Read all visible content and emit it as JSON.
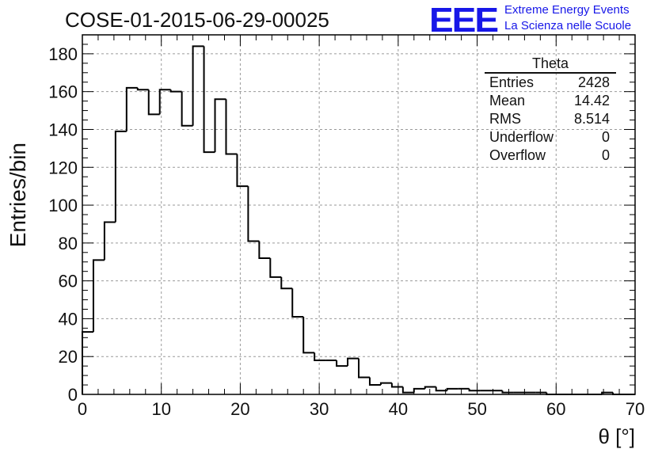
{
  "header": {
    "title": "COSE-01-2015-06-29-00025",
    "logo_text": "EEE",
    "logo_line1": "Extreme Energy Events",
    "logo_line2": "La Scienza nelle Scuole",
    "logo_color": "#1717e8"
  },
  "stats": {
    "name": "Theta",
    "rows": [
      {
        "label": "Entries",
        "value": "2428"
      },
      {
        "label": "Mean",
        "value": "14.42"
      },
      {
        "label": "RMS",
        "value": "8.514"
      },
      {
        "label": "Underflow",
        "value": "0"
      },
      {
        "label": "Overflow",
        "value": "0"
      }
    ]
  },
  "chart_data": {
    "type": "bar",
    "style": "step-histogram",
    "title": "COSE-01-2015-06-29-00025",
    "xlabel": "θ [°]",
    "ylabel": "Entries/bin",
    "xlim": [
      0,
      70
    ],
    "ylim": [
      0,
      190
    ],
    "xticks": [
      0,
      10,
      20,
      30,
      40,
      50,
      60,
      70
    ],
    "yticks": [
      0,
      20,
      40,
      60,
      80,
      100,
      120,
      140,
      160,
      180
    ],
    "grid": true,
    "bin_width": 1.4,
    "bin_edges_start": 0,
    "values": [
      33,
      71,
      91,
      139,
      162,
      161,
      148,
      161,
      160,
      142,
      184,
      128,
      156,
      127,
      110,
      81,
      72,
      62,
      56,
      41,
      22,
      18,
      18,
      15,
      19,
      9,
      5,
      6,
      4,
      1,
      3,
      4,
      2,
      3,
      3,
      2,
      2,
      2,
      1,
      1,
      1,
      1,
      0,
      0,
      0,
      0,
      0,
      1,
      0,
      0
    ]
  }
}
